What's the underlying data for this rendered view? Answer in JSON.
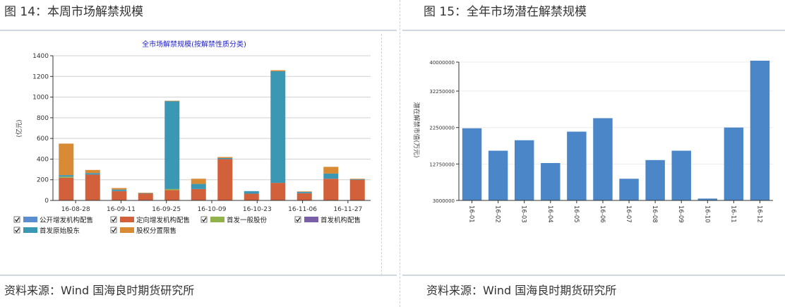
{
  "panels": [
    {
      "title": "图 14：本周市场解禁规模",
      "source": "资料来源：Wind 国海良时期货研究所"
    },
    {
      "title": "图 15：全年市场潜在解禁规模",
      "source": "资料来源：Wind 国海良时期货研究所"
    }
  ],
  "chart_data": [
    {
      "type": "bar",
      "stacked": true,
      "title": "全市场解禁规模(按解禁性质分类)",
      "ylabel": "(亿元)",
      "ylim": [
        0,
        1400
      ],
      "yticks": [
        0,
        200,
        400,
        600,
        800,
        1000,
        1200,
        1400
      ],
      "x_tick_labels": [
        "16-08-28",
        "16-09-11",
        "16-09-25",
        "16-10-09",
        "16-10-23",
        "16-11-06",
        "16-11-27"
      ],
      "series": [
        {
          "name": "定向增发机构配售",
          "color": "#d2603a",
          "values": [
            220,
            250,
            90,
            65,
            100,
            110,
            400,
            65,
            170,
            70,
            210,
            200
          ]
        },
        {
          "name": "首发一般股份",
          "color": "#8fb24a",
          "values": [
            10,
            0,
            0,
            0,
            10,
            0,
            0,
            0,
            0,
            0,
            0,
            0
          ]
        },
        {
          "name": "首发原始股东",
          "color": "#3a98b5",
          "values": [
            15,
            15,
            15,
            5,
            850,
            50,
            10,
            25,
            1080,
            12,
            50,
            5
          ]
        },
        {
          "name": "首发机构配售",
          "color": "#7a5ea8",
          "values": [
            0,
            0,
            0,
            0,
            0,
            0,
            0,
            0,
            0,
            0,
            0,
            0
          ]
        },
        {
          "name": "公开增发机构配售",
          "color": "#5a8ed0",
          "values": [
            0,
            0,
            0,
            0,
            0,
            0,
            0,
            0,
            0,
            0,
            0,
            0
          ]
        },
        {
          "name": "股权分置限售",
          "color": "#d98a35",
          "values": [
            305,
            30,
            15,
            5,
            5,
            50,
            10,
            0,
            10,
            5,
            65,
            5
          ]
        }
      ],
      "legend": [
        {
          "label": "公开增发机构配售",
          "color": "#5a8ed0"
        },
        {
          "label": "定向增发机构配售",
          "color": "#d2603a"
        },
        {
          "label": "首发一般股份",
          "color": "#8fb24a"
        },
        {
          "label": "首发机构配售",
          "color": "#7a5ea8"
        },
        {
          "label": "首发原始股东",
          "color": "#3a98b5"
        },
        {
          "label": "股权分置限售",
          "color": "#d98a35"
        }
      ],
      "legend_placement": "bottom"
    },
    {
      "type": "bar",
      "title": "",
      "ylabel": "潜在解禁市值(万元)",
      "ylim": [
        3000000,
        40000000
      ],
      "yticks": [
        3000000,
        12750000,
        22500000,
        32250000,
        40000000
      ],
      "ytick_labels": [
        "3000000",
        "12750000",
        "22500000",
        "32250000",
        "40000000"
      ],
      "categories": [
        "16-01",
        "16-02",
        "16-03",
        "16-04",
        "16-05",
        "16-06",
        "16-07",
        "16-08",
        "16-09",
        "16-10",
        "16-11",
        "16-12"
      ],
      "values": [
        22300000,
        16300000,
        19100000,
        13000000,
        21400000,
        25000000,
        8800000,
        13800000,
        16300000,
        3500000,
        22500000,
        41000000
      ],
      "color": "#4a86c8"
    }
  ]
}
